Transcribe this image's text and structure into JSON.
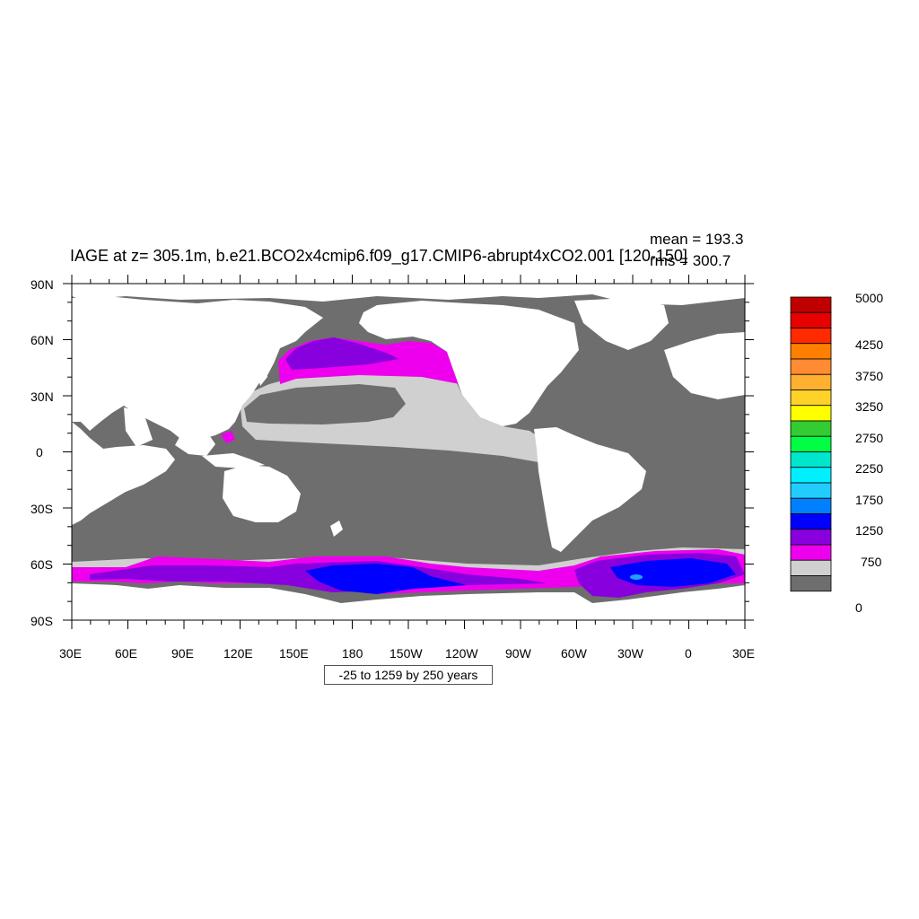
{
  "map": {
    "title": "IAGE at z= 305.1m, b.e21.BCO2x4cmip6.f09_g17.CMIP6-abrupt4xCO2.001 [120-150]",
    "mean_label": "mean = 193.3",
    "rms_label": "rms = 300.7",
    "range_note": "-25 to 1259 by 250 years",
    "lat_labels": [
      "90N",
      "60N",
      "30N",
      "0",
      "30S",
      "60S",
      "90S"
    ],
    "lon_labels": [
      "30E",
      "60E",
      "90E",
      "120E",
      "150E",
      "180",
      "150W",
      "120W",
      "90W",
      "60W",
      "30W",
      "0",
      "30E"
    ]
  },
  "colorbar": {
    "labels": [
      "5000",
      "4250",
      "3750",
      "3250",
      "2750",
      "2250",
      "1750",
      "1250",
      "750",
      "0"
    ],
    "colors": [
      "#c00000",
      "#e60000",
      "#ff2a00",
      "#ff8000",
      "#ff8c33",
      "#ffb030",
      "#ffd22a",
      "#ffff00",
      "#33cc33",
      "#00ff44",
      "#00e6cc",
      "#00f0ff",
      "#22ccff",
      "#0080ff",
      "#0000ff",
      "#8800dd",
      "#ee00ee",
      "#d0d0d0",
      "#6e6e6e"
    ]
  },
  "colors": {
    "land": "#ffffff",
    "young": "#6e6e6e",
    "light": "#d0d0d0",
    "magenta": "#ee00ee",
    "purple": "#8800dd",
    "blue": "#0000ff",
    "skyblue": "#22a0ff"
  }
}
